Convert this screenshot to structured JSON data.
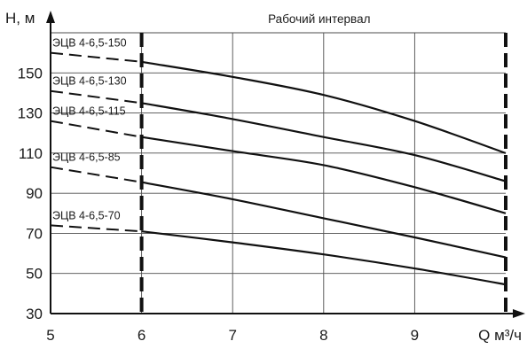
{
  "chart_data": {
    "type": "line",
    "annotation": "Рабочий интервал",
    "xlabel": "Q м³/ч",
    "ylabel": "H, м",
    "xlim": [
      5,
      10
    ],
    "ylim": [
      30,
      170
    ],
    "x_ticks": [
      "5",
      "6",
      "7",
      "8",
      "9"
    ],
    "y_ticks": [
      "30",
      "50",
      "70",
      "90",
      "110",
      "130",
      "150"
    ],
    "grid": true,
    "working_interval": [
      6,
      10
    ],
    "series": [
      {
        "name": "ЭЦВ 4-6,5-150",
        "dashed": [
          [
            5,
            160
          ],
          [
            6,
            155.5
          ]
        ],
        "solid": [
          [
            6,
            155.5
          ],
          [
            7,
            148
          ],
          [
            8,
            139
          ],
          [
            9,
            126
          ],
          [
            10,
            110
          ]
        ]
      },
      {
        "name": "ЭЦВ 4-6,5-130",
        "dashed": [
          [
            5,
            141
          ],
          [
            6,
            135
          ]
        ],
        "solid": [
          [
            6,
            135
          ],
          [
            7,
            127
          ],
          [
            8,
            118
          ],
          [
            9,
            109
          ],
          [
            10,
            96
          ]
        ]
      },
      {
        "name": "ЭЦВ 4-6,5-115",
        "dashed": [
          [
            5,
            126
          ],
          [
            6,
            118
          ]
        ],
        "solid": [
          [
            6,
            118
          ],
          [
            7,
            111
          ],
          [
            8,
            104
          ],
          [
            9,
            93
          ],
          [
            10,
            80
          ]
        ]
      },
      {
        "name": "ЭЦВ 4-6,5-85",
        "dashed": [
          [
            5,
            103
          ],
          [
            6,
            95.5
          ]
        ],
        "solid": [
          [
            6,
            95.5
          ],
          [
            7,
            87
          ],
          [
            8,
            77.5
          ],
          [
            9,
            68
          ],
          [
            10,
            58
          ]
        ]
      },
      {
        "name": "ЭЦВ 4-6,5-70",
        "dashed": [
          [
            5,
            74
          ],
          [
            6,
            71
          ]
        ],
        "solid": [
          [
            6,
            71
          ],
          [
            7,
            65.5
          ],
          [
            8,
            59.5
          ],
          [
            9,
            52.5
          ],
          [
            10,
            44.5
          ]
        ]
      }
    ]
  }
}
